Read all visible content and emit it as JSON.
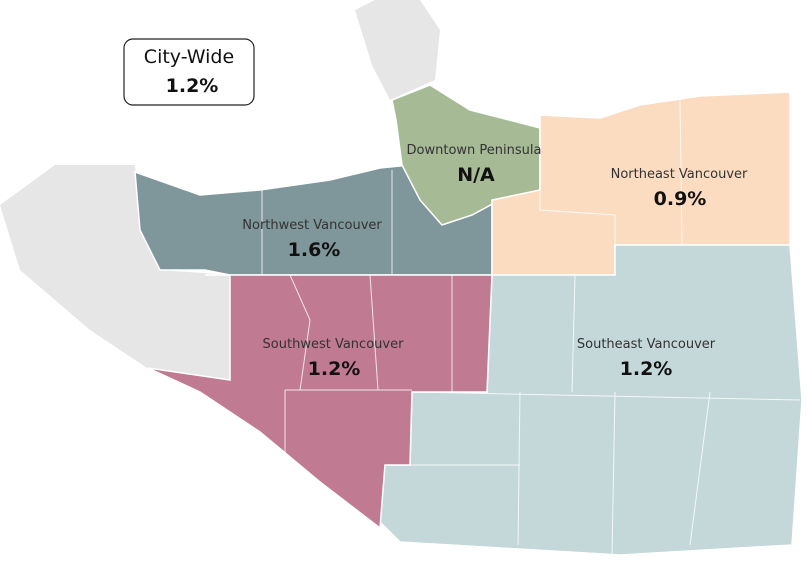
{
  "legend": {
    "label": "City-Wide",
    "value": "1.2%"
  },
  "regions": [
    {
      "name": "Downtown Peninsula",
      "value": "N/A"
    },
    {
      "name": "Northeast Vancouver",
      "value": "0.9%"
    },
    {
      "name": "Northwest Vancouver",
      "value": "1.6%"
    },
    {
      "name": "Southwest Vancouver",
      "value": "1.2%"
    },
    {
      "name": "Southeast Vancouver",
      "value": "1.2%"
    }
  ]
}
